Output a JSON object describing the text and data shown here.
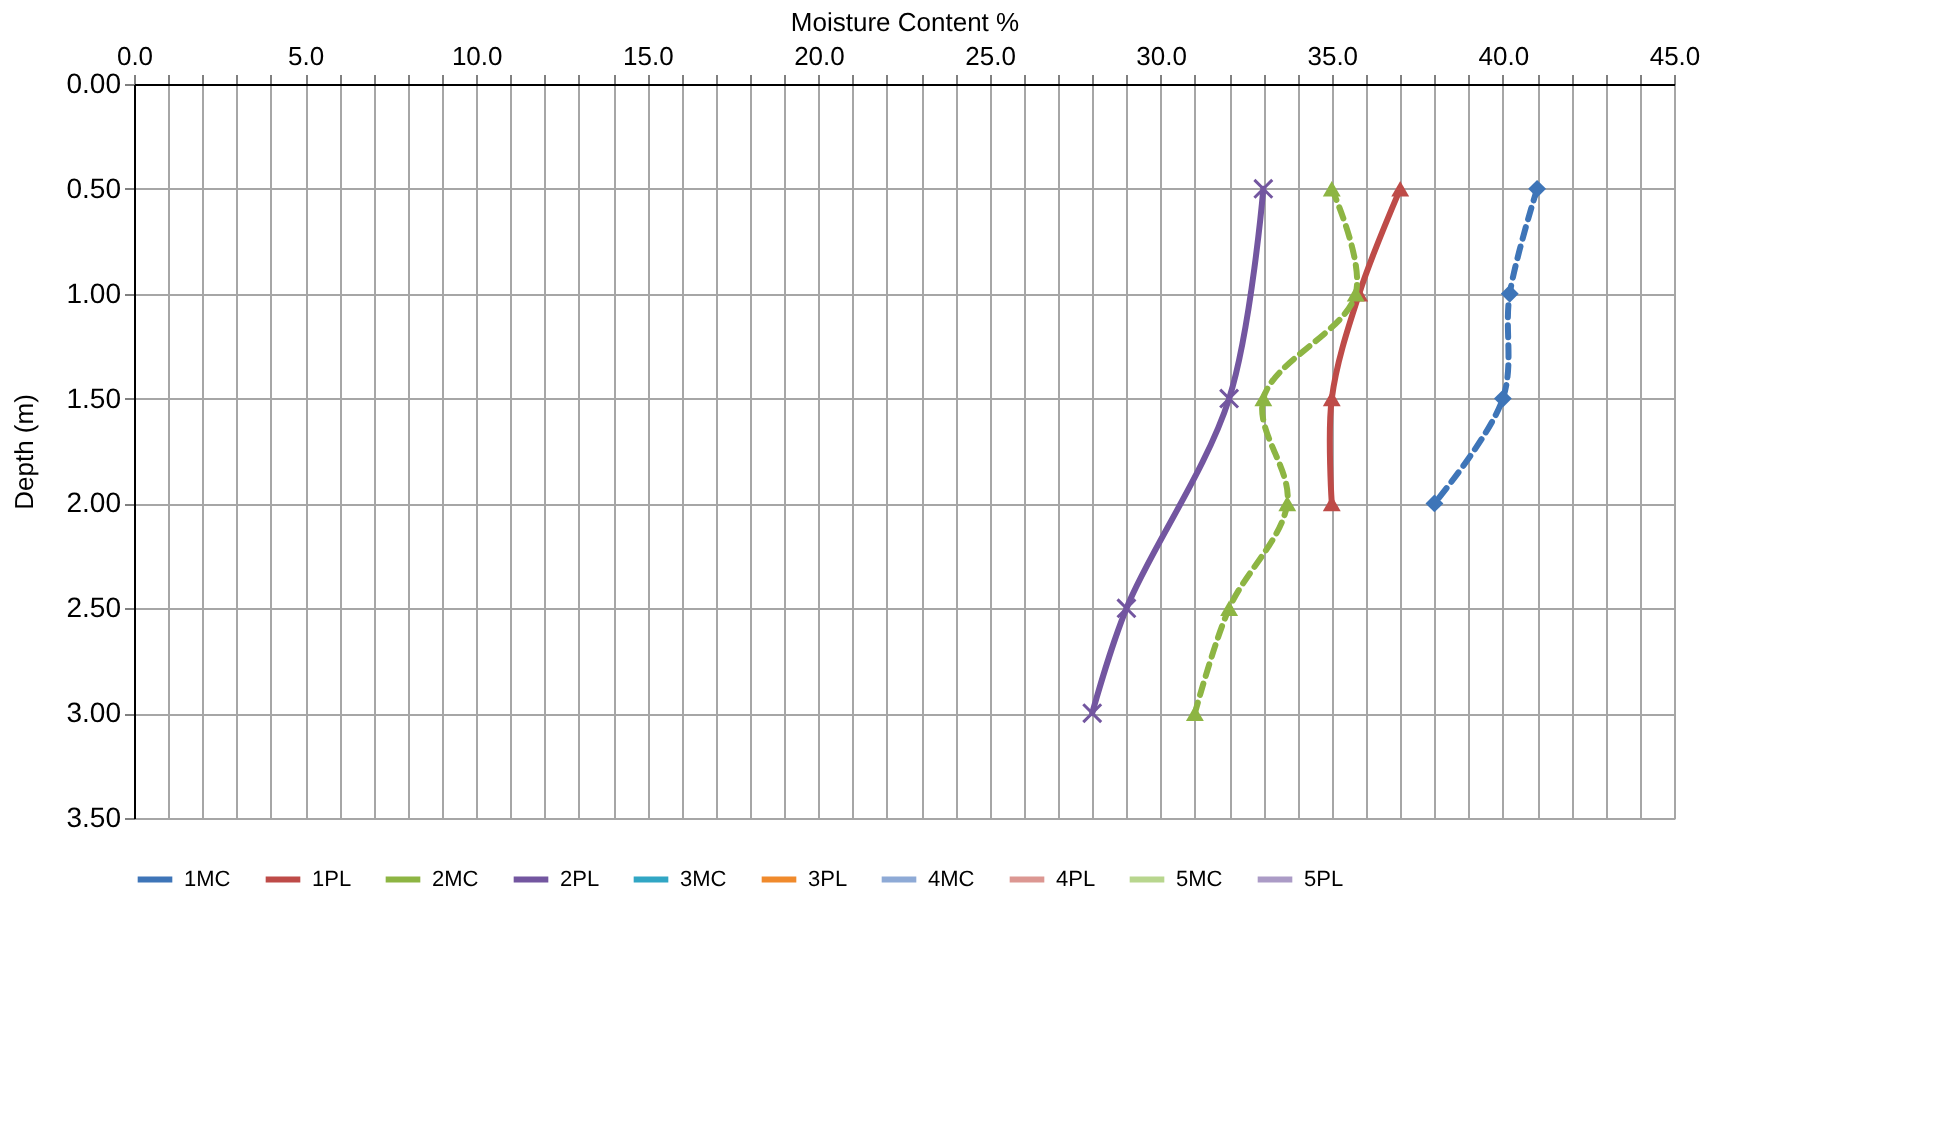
{
  "chart_data": {
    "type": "line",
    "xlabel": "Moisture Content %",
    "ylabel": "Depth (m)",
    "xlim": [
      0,
      45
    ],
    "ylim": [
      3.5,
      0
    ],
    "xticks": [
      {
        "value": 0,
        "label": "0.0"
      },
      {
        "value": 1,
        "label": null
      },
      {
        "value": 2,
        "label": null
      },
      {
        "value": 3,
        "label": null
      },
      {
        "value": 4,
        "label": null
      },
      {
        "value": 5,
        "label": "5.0"
      },
      {
        "value": 6,
        "label": null
      },
      {
        "value": 7,
        "label": null
      },
      {
        "value": 8,
        "label": null
      },
      {
        "value": 9,
        "label": null
      },
      {
        "value": 10,
        "label": "10.0"
      },
      {
        "value": 11,
        "label": null
      },
      {
        "value": 12,
        "label": null
      },
      {
        "value": 13,
        "label": null
      },
      {
        "value": 14,
        "label": null
      },
      {
        "value": 15,
        "label": "15.0"
      },
      {
        "value": 16,
        "label": null
      },
      {
        "value": 17,
        "label": null
      },
      {
        "value": 18,
        "label": null
      },
      {
        "value": 19,
        "label": null
      },
      {
        "value": 20,
        "label": "20.0"
      },
      {
        "value": 21,
        "label": null
      },
      {
        "value": 22,
        "label": null
      },
      {
        "value": 23,
        "label": null
      },
      {
        "value": 24,
        "label": null
      },
      {
        "value": 25,
        "label": "25.0"
      },
      {
        "value": 26,
        "label": null
      },
      {
        "value": 27,
        "label": null
      },
      {
        "value": 28,
        "label": null
      },
      {
        "value": 29,
        "label": null
      },
      {
        "value": 30,
        "label": "30.0"
      },
      {
        "value": 31,
        "label": null
      },
      {
        "value": 32,
        "label": null
      },
      {
        "value": 33,
        "label": null
      },
      {
        "value": 34,
        "label": null
      },
      {
        "value": 35,
        "label": "35.0"
      },
      {
        "value": 36,
        "label": null
      },
      {
        "value": 37,
        "label": null
      },
      {
        "value": 38,
        "label": null
      },
      {
        "value": 39,
        "label": null
      },
      {
        "value": 40,
        "label": "40.0"
      },
      {
        "value": 41,
        "label": null
      },
      {
        "value": 42,
        "label": null
      },
      {
        "value": 43,
        "label": null
      },
      {
        "value": 44,
        "label": null
      },
      {
        "value": 45,
        "label": "45.0"
      }
    ],
    "yticks": [
      {
        "value": 0,
        "label": "0.00"
      },
      {
        "value": 0.5,
        "label": "0.50"
      },
      {
        "value": 1,
        "label": "1.00"
      },
      {
        "value": 1.5,
        "label": "1.50"
      },
      {
        "value": 2,
        "label": "2.00"
      },
      {
        "value": 2.5,
        "label": "2.50"
      },
      {
        "value": 3,
        "label": "3.00"
      },
      {
        "value": 3.5,
        "label": "3.50"
      }
    ],
    "grid": true,
    "legend": "bottom",
    "series": [
      {
        "name": "1MC",
        "color": "#3e75b8",
        "line_style": "dashed",
        "marker": "diamond",
        "x": [
          41.0,
          40.2,
          40.0,
          38.0
        ],
        "values": [
          0.5,
          1.0,
          1.5,
          2.0
        ]
      },
      {
        "name": "1PL",
        "color": "#be4b48",
        "line_style": "solid",
        "marker": "triangle",
        "x": [
          37.0,
          35.8,
          35.0,
          35.0
        ],
        "values": [
          0.5,
          1.0,
          1.5,
          2.0
        ]
      },
      {
        "name": "2MC",
        "color": "#8db543",
        "line_style": "dashed",
        "marker": "triangle",
        "x": [
          35.0,
          35.7,
          33.0,
          33.7,
          32.0,
          31.0
        ],
        "values": [
          0.5,
          1.0,
          1.5,
          2.0,
          2.5,
          3.0
        ]
      },
      {
        "name": "2PL",
        "color": "#7356a0",
        "line_style": "solid",
        "marker": "cross",
        "x": [
          33.0,
          32.0,
          29.0,
          28.0
        ],
        "values": [
          0.5,
          1.5,
          2.5,
          3.0
        ]
      },
      {
        "name": "3MC",
        "color": "#31a6c4",
        "line_style": "dashed",
        "marker": "star"
      },
      {
        "name": "3PL",
        "color": "#f08a2c",
        "line_style": "solid",
        "marker": "circle"
      },
      {
        "name": "4MC",
        "color": "#8eaad6",
        "line_style": "dashed",
        "marker": "diamond"
      },
      {
        "name": "4PL",
        "color": "#dc9792",
        "line_style": "solid",
        "marker": "none"
      },
      {
        "name": "5MC",
        "color": "#b8d68e",
        "line_style": "solid",
        "marker": "none"
      },
      {
        "name": "5PL",
        "color": "#ab9bc6",
        "line_style": "solid",
        "marker": "diamond"
      }
    ]
  }
}
